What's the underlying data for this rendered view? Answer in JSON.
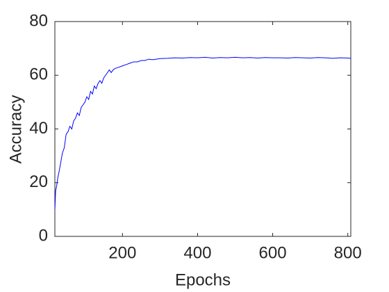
{
  "chart_data": {
    "type": "line",
    "xlabel": "Epochs",
    "ylabel": "Accuracy",
    "x": [
      20,
      22,
      25,
      28,
      31,
      35,
      40,
      45,
      50,
      55,
      60,
      65,
      70,
      75,
      80,
      85,
      90,
      95,
      100,
      105,
      110,
      115,
      120,
      125,
      130,
      135,
      140,
      145,
      150,
      155,
      160,
      165,
      170,
      175,
      180,
      190,
      200,
      210,
      220,
      230,
      240,
      250,
      260,
      270,
      280,
      290,
      300,
      320,
      340,
      360,
      380,
      400,
      420,
      440,
      460,
      480,
      500,
      520,
      540,
      560,
      580,
      600,
      620,
      640,
      660,
      680,
      700,
      720,
      740,
      760,
      780,
      800,
      808
    ],
    "series": [
      {
        "color": "#0000ff",
        "values": [
          10,
          17,
          19,
          22,
          24,
          27,
          31,
          33,
          38,
          39,
          41,
          40,
          43,
          44,
          46,
          45,
          48,
          49,
          50,
          52,
          51,
          54,
          53,
          56,
          55,
          57,
          58,
          57,
          59,
          60,
          61,
          62,
          61,
          62,
          62.5,
          63,
          63.5,
          64,
          64.5,
          65,
          65,
          65.5,
          65.5,
          66,
          65.8,
          66,
          66.2,
          66.3,
          66.5,
          66.4,
          66.6,
          66.5,
          66.7,
          66.4,
          66.6,
          66.5,
          66.7,
          66.5,
          66.6,
          66.4,
          66.6,
          66.5,
          66.5,
          66.4,
          66.6,
          66.5,
          66.4,
          66.6,
          66.5,
          66.3,
          66.5,
          66.4,
          66.3
        ]
      }
    ],
    "xlim": [
      20,
      808
    ],
    "ylim": [
      0,
      80
    ],
    "xticks": [
      200,
      400,
      600,
      800
    ],
    "yticks": [
      0,
      20,
      40,
      60,
      80
    ],
    "grid": false
  }
}
